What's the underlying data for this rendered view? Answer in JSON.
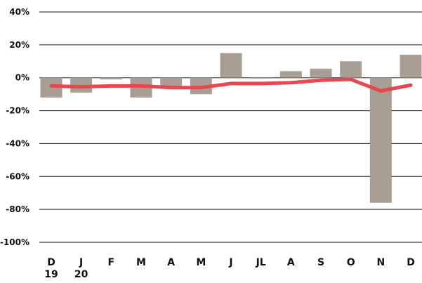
{
  "chart_data": {
    "type": "bar",
    "title": "",
    "xlabel": "",
    "ylabel": "",
    "categories": [
      "D",
      "J",
      "F",
      "M",
      "A",
      "M",
      "J",
      "JL",
      "A",
      "S",
      "O",
      "N",
      "D"
    ],
    "year_labels": [
      "19",
      "20"
    ],
    "ylim": [
      -100,
      40
    ],
    "yticks": [
      40,
      20,
      0,
      -20,
      -40,
      -60,
      -80,
      -100
    ],
    "ytick_labels": [
      "40%",
      "20%",
      "0%",
      "-20%",
      "-40%",
      "-60%",
      "-80%",
      "-100%"
    ],
    "grid": true,
    "legend": "none",
    "series": [
      {
        "type": "bar",
        "color": "#a89e93",
        "values": [
          -12,
          -9,
          -1,
          -12,
          -5,
          -10,
          15,
          -0.5,
          4,
          5.5,
          10,
          -76,
          14
        ]
      },
      {
        "type": "line",
        "color": "#e8474f",
        "values": [
          -5,
          -5.5,
          -5,
          -5,
          -6,
          -6,
          -3.5,
          -3.5,
          -3,
          -1.5,
          -1,
          -8,
          -4.5
        ]
      }
    ]
  }
}
